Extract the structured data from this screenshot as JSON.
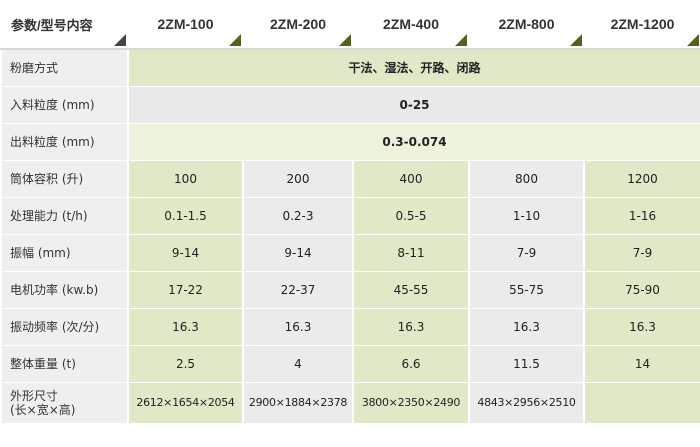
{
  "table": {
    "header": [
      "参数/型号内容",
      "2ZM-100",
      "2ZM-200",
      "2ZM-400",
      "2ZM-800",
      "2ZM-1200"
    ],
    "rows": [
      {
        "label": "粉磨方式",
        "cells": [
          "干法、湿法、开路、闭路"
        ]
      },
      {
        "label": "入料粒度 (mm)",
        "cells": [
          "0-25"
        ]
      },
      {
        "label": "出料粒度 (mm)",
        "cells": [
          "0.3-0.074"
        ]
      },
      {
        "label": "筒体容积 (升)",
        "cells": [
          "100",
          "200",
          "400",
          "800",
          "1200"
        ]
      },
      {
        "label": "处理能力 (t/h)",
        "cells": [
          "0.1-1.5",
          "0.2-3",
          "0.5-5",
          "1-10",
          "1-16"
        ]
      },
      {
        "label": "振幅 (mm)",
        "cells": [
          "9-14",
          "9-14",
          "8-11",
          "7-9",
          "7-9"
        ]
      },
      {
        "label": "电机功率 (kw.b)",
        "cells": [
          "17-22",
          "22-37",
          "45-55",
          "55-75",
          "75-90"
        ]
      },
      {
        "label": "振动频率 (次/分)",
        "cells": [
          "16.3",
          "16.3",
          "16.3",
          "16.3",
          "16.3"
        ]
      },
      {
        "label": "整体重量 (t)",
        "cells": [
          "2.5",
          "4",
          "6.6",
          "11.5",
          "14"
        ]
      },
      {
        "label": "外形尺寸\n(长×宽×高)",
        "cells": [
          "2612×1654×2054",
          "2900×1884×2378",
          "3800×2350×2490",
          "4843×2956×2510"
        ]
      }
    ]
  }
}
